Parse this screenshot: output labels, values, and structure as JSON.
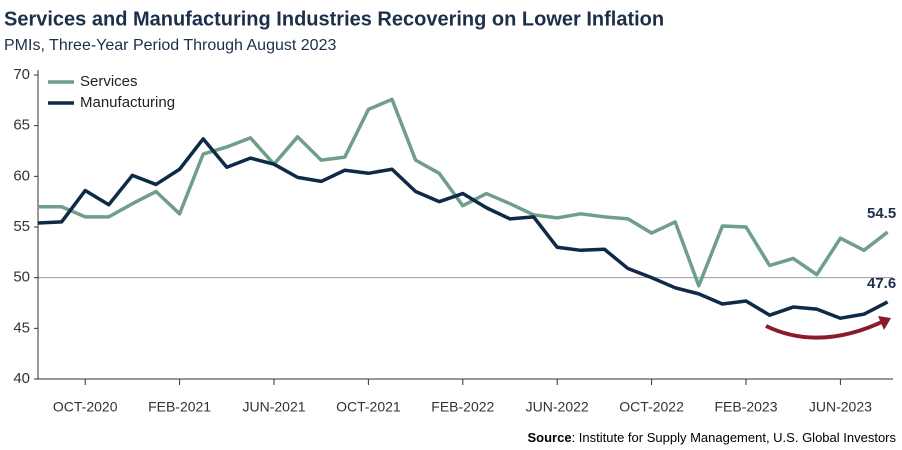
{
  "chart_data": {
    "type": "line",
    "title": "Services and Manufacturing Industries Recovering on Lower Inflation",
    "subtitle": "PMIs, Three-Year Period Through August 2023",
    "source_label": "Source",
    "source": ": Institute for Supply Management, U.S. Global Investors",
    "categories": [
      null,
      null,
      "OCT-2020",
      null,
      null,
      null,
      "FEB-2021",
      null,
      null,
      null,
      "JUN-2021",
      null,
      null,
      null,
      "OCT-2021",
      null,
      null,
      null,
      "FEB-2022",
      null,
      null,
      null,
      "JUN-2022",
      null,
      null,
      null,
      "OCT-2022",
      null,
      null,
      null,
      "FEB-2023",
      null,
      null,
      null,
      "JUN-2023",
      null,
      null
    ],
    "series": [
      {
        "name": "Services",
        "color": "#6f9e89",
        "values": [
          57,
          57,
          56,
          56,
          57.3,
          58.5,
          56.3,
          62.2,
          62.9,
          63.8,
          61.2,
          63.9,
          61.6,
          61.9,
          66.6,
          67.6,
          61.6,
          60.3,
          57.1,
          58.3,
          57.3,
          56.2,
          55.9,
          56.3,
          56.0,
          55.8,
          54.4,
          55.5,
          49.2,
          55.1,
          55.0,
          51.2,
          51.9,
          50.3,
          53.9,
          52.7,
          54.5
        ]
      },
      {
        "name": "Manufacturing",
        "color": "#0e2a47",
        "values": [
          55.4,
          55.5,
          58.6,
          57.2,
          60.1,
          59.2,
          60.7,
          63.7,
          60.9,
          61.8,
          61.2,
          59.9,
          59.5,
          60.6,
          60.3,
          60.7,
          58.5,
          57.5,
          58.3,
          56.9,
          55.8,
          56.0,
          53.0,
          52.7,
          52.8,
          50.9,
          50.0,
          49.0,
          48.4,
          47.4,
          47.7,
          46.3,
          47.1,
          46.9,
          46.0,
          46.4,
          47.6
        ]
      }
    ],
    "ylim": [
      40,
      70
    ],
    "yticks": [
      40,
      45,
      50,
      55,
      60,
      65,
      70
    ],
    "reference_line": 50,
    "legend": "upper left"
  }
}
